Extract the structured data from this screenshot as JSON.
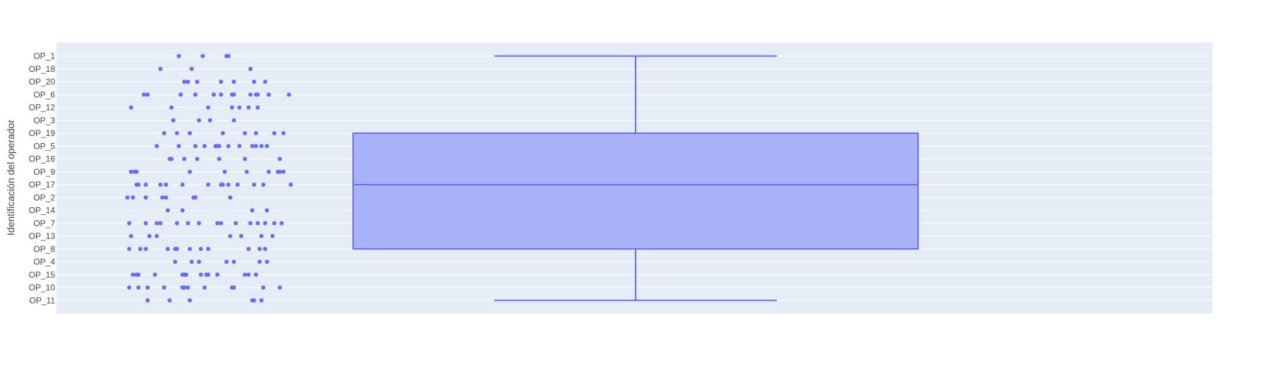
{
  "chart_data": {
    "type": "box",
    "orientation": "vertical-categories",
    "title": "",
    "xlabel": "",
    "ylabel": "Identificación del operador",
    "categories": [
      "OP_1",
      "OP_18",
      "OP_20",
      "OP_6",
      "OP_12",
      "OP_3",
      "OP_19",
      "OP_5",
      "OP_16",
      "OP_9",
      "OP_17",
      "OP_2",
      "OP_14",
      "OP_7",
      "OP_13",
      "OP_8",
      "OP_4",
      "OP_15",
      "OP_10",
      "OP_11"
    ],
    "box": {
      "lower_fence": "OP_11",
      "q1": "OP_8",
      "median": "OP_17",
      "q3": "OP_19",
      "upper_fence": "OP_1"
    },
    "x_axis_visible": false,
    "points_jitter_value_range": [
      0,
      1
    ],
    "points": [
      {
        "category": "OP_1",
        "x": [
          0.32,
          0.45,
          0.58,
          0.59
        ]
      },
      {
        "category": "OP_18",
        "x": [
          0.22,
          0.39,
          0.71
        ]
      },
      {
        "category": "OP_20",
        "x": [
          0.35,
          0.37,
          0.42,
          0.55,
          0.62,
          0.73,
          0.79
        ]
      },
      {
        "category": "OP_6",
        "x": [
          0.13,
          0.15,
          0.33,
          0.41,
          0.51,
          0.55,
          0.61,
          0.62,
          0.71,
          0.74,
          0.75,
          0.81,
          0.92
        ]
      },
      {
        "category": "OP_12",
        "x": [
          0.06,
          0.28,
          0.48,
          0.61,
          0.65,
          0.7,
          0.75
        ]
      },
      {
        "category": "OP_3",
        "x": [
          0.29,
          0.43,
          0.49,
          0.62
        ]
      },
      {
        "category": "OP_19",
        "x": [
          0.24,
          0.31,
          0.38,
          0.56,
          0.68,
          0.74,
          0.84,
          0.89
        ]
      },
      {
        "category": "OP_5",
        "x": [
          0.2,
          0.32,
          0.41,
          0.46,
          0.52,
          0.53,
          0.54,
          0.59,
          0.65,
          0.72,
          0.74,
          0.77,
          0.8
        ]
      },
      {
        "category": "OP_16",
        "x": [
          0.27,
          0.28,
          0.35,
          0.42,
          0.54,
          0.68,
          0.87
        ]
      },
      {
        "category": "OP_9",
        "x": [
          0.06,
          0.08,
          0.09,
          0.38,
          0.57,
          0.69,
          0.81,
          0.86,
          0.87,
          0.89
        ]
      },
      {
        "category": "OP_17",
        "x": [
          0.09,
          0.1,
          0.14,
          0.22,
          0.25,
          0.34,
          0.48,
          0.55,
          0.56,
          0.59,
          0.64,
          0.73,
          0.78,
          0.93
        ]
      },
      {
        "category": "OP_2",
        "x": [
          0.04,
          0.07,
          0.14,
          0.23,
          0.25,
          0.4,
          0.41,
          0.6
        ]
      },
      {
        "category": "OP_14",
        "x": [
          0.26,
          0.34,
          0.72,
          0.8
        ]
      },
      {
        "category": "OP_7",
        "x": [
          0.05,
          0.14,
          0.2,
          0.22,
          0.31,
          0.37,
          0.43,
          0.53,
          0.55,
          0.63,
          0.71,
          0.75,
          0.79,
          0.84,
          0.88
        ]
      },
      {
        "category": "OP_13",
        "x": [
          0.06,
          0.16,
          0.2,
          0.6,
          0.66,
          0.77,
          0.83
        ]
      },
      {
        "category": "OP_8",
        "x": [
          0.05,
          0.11,
          0.14,
          0.26,
          0.3,
          0.31,
          0.38,
          0.44,
          0.48,
          0.7,
          0.76,
          0.79
        ]
      },
      {
        "category": "OP_4",
        "x": [
          0.3,
          0.39,
          0.43,
          0.58,
          0.62,
          0.76,
          0.8
        ]
      },
      {
        "category": "OP_15",
        "x": [
          0.07,
          0.09,
          0.1,
          0.19,
          0.34,
          0.35,
          0.36,
          0.44,
          0.47,
          0.48,
          0.53,
          0.68,
          0.7,
          0.74
        ]
      },
      {
        "category": "OP_10",
        "x": [
          0.05,
          0.1,
          0.15,
          0.24,
          0.34,
          0.35,
          0.37,
          0.46,
          0.61,
          0.62,
          0.78,
          0.87
        ]
      },
      {
        "category": "OP_11",
        "x": [
          0.15,
          0.27,
          0.38,
          0.72,
          0.73,
          0.77
        ]
      }
    ],
    "colors": {
      "marker": "#636efa",
      "box_fill": "#a3abf7",
      "box_line": "#636efa",
      "plot_bg": "#e5ecf6",
      "grid": "#ffffff"
    },
    "grid": true
  }
}
